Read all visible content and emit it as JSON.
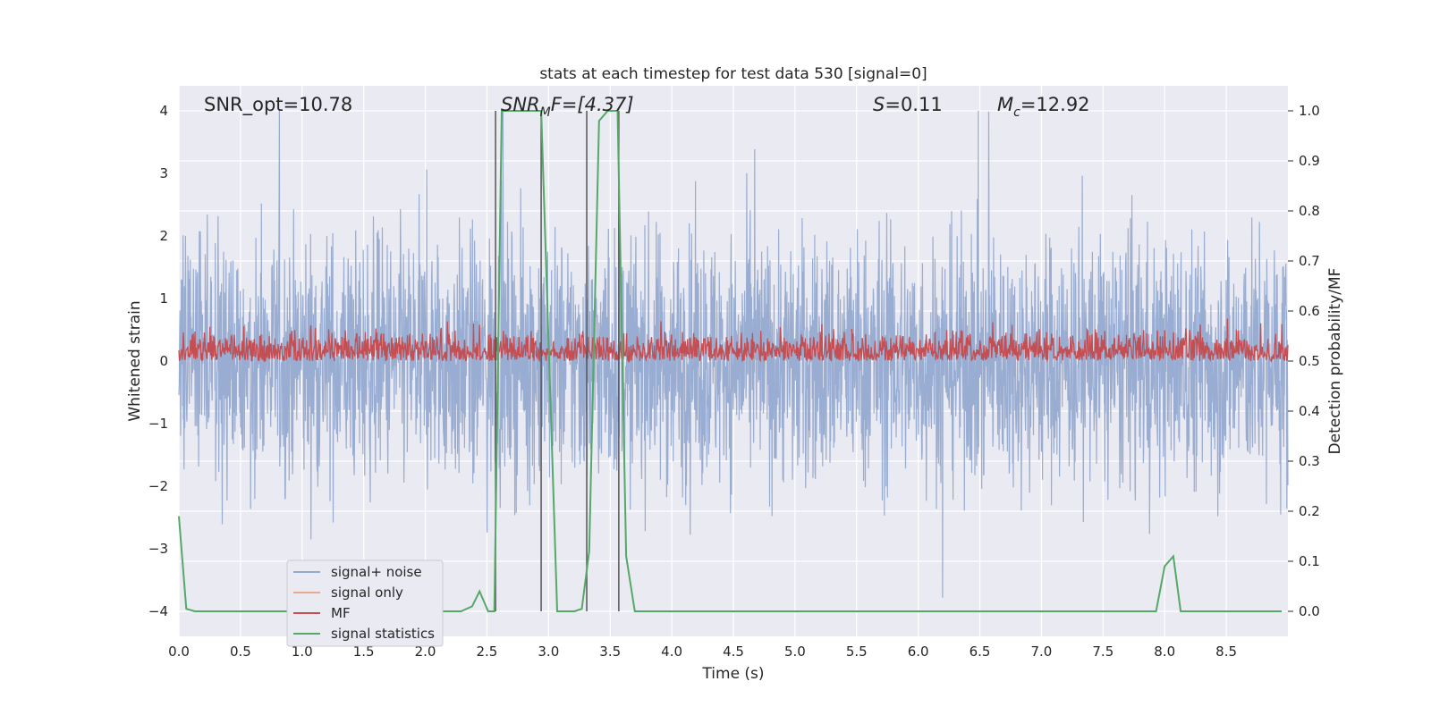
{
  "chart_data": {
    "type": "line",
    "title": "stats at each timestep for test data 530 [signal=0]",
    "xlabel": "Time (s)",
    "ylabel_left": "Whitened strain",
    "ylabel_right": "Detection probability/MF",
    "xlim": [
      0.0,
      9.0
    ],
    "ylim_left": [
      -4.4,
      4.4
    ],
    "ylim_right": [
      -0.05,
      1.05
    ],
    "x_ticks": [
      "0.0",
      "0.5",
      "1.0",
      "1.5",
      "2.0",
      "2.5",
      "3.0",
      "3.5",
      "4.0",
      "4.5",
      "5.0",
      "5.5",
      "6.0",
      "6.5",
      "7.0",
      "7.5",
      "8.0",
      "8.5"
    ],
    "y_ticks_left": [
      "−4",
      "−3",
      "−2",
      "−1",
      "0",
      "1",
      "2",
      "3",
      "4"
    ],
    "y_ticks_right": [
      "0.0",
      "0.1",
      "0.2",
      "0.3",
      "0.4",
      "0.5",
      "0.6",
      "0.7",
      "0.8",
      "0.9",
      "1.0"
    ],
    "grid": true,
    "legend_position": "lower-left",
    "annotations": {
      "snr_opt": "SNR_opt=10.78",
      "snr_mf_main": "SNR",
      "snr_mf_sub": "M",
      "snr_mf_rest": "F=[4.37]",
      "s_var": "S",
      "s_rest": "=0.11",
      "mc_var": "M",
      "mc_sub": "c",
      "mc_rest": "=12.92"
    },
    "vertical_lines_x": [
      2.57,
      2.94,
      3.31,
      3.57
    ],
    "series": [
      {
        "name": "signal+ noise",
        "color": "#95a9cf",
        "axis": "left",
        "description_range": [
          -4.0,
          4.0
        ]
      },
      {
        "name": "signal only",
        "color": "#e8a98c",
        "axis": "left",
        "values": []
      },
      {
        "name": "MF",
        "color": "#c44e52",
        "axis": "right",
        "description_range": [
          0.5,
          0.62
        ]
      },
      {
        "name": "signal statistics",
        "color": "#55a868",
        "axis": "right",
        "x": [
          0.0,
          0.06,
          0.13,
          2.2,
          2.29,
          2.38,
          2.44,
          2.51,
          2.56,
          2.62,
          2.94,
          3.07,
          3.21,
          3.27,
          3.33,
          3.41,
          3.48,
          3.56,
          3.63,
          3.7,
          7.93,
          8.0,
          8.07,
          8.13,
          8.95
        ],
        "values": [
          0.19,
          0.005,
          0.0,
          0.0,
          0.0,
          0.01,
          0.04,
          0.0,
          0.0,
          1.0,
          1.0,
          0.0,
          0.0,
          0.005,
          0.12,
          0.98,
          1.0,
          1.0,
          0.11,
          0.0,
          0.0,
          0.09,
          0.11,
          0.0,
          0.0
        ]
      }
    ]
  }
}
